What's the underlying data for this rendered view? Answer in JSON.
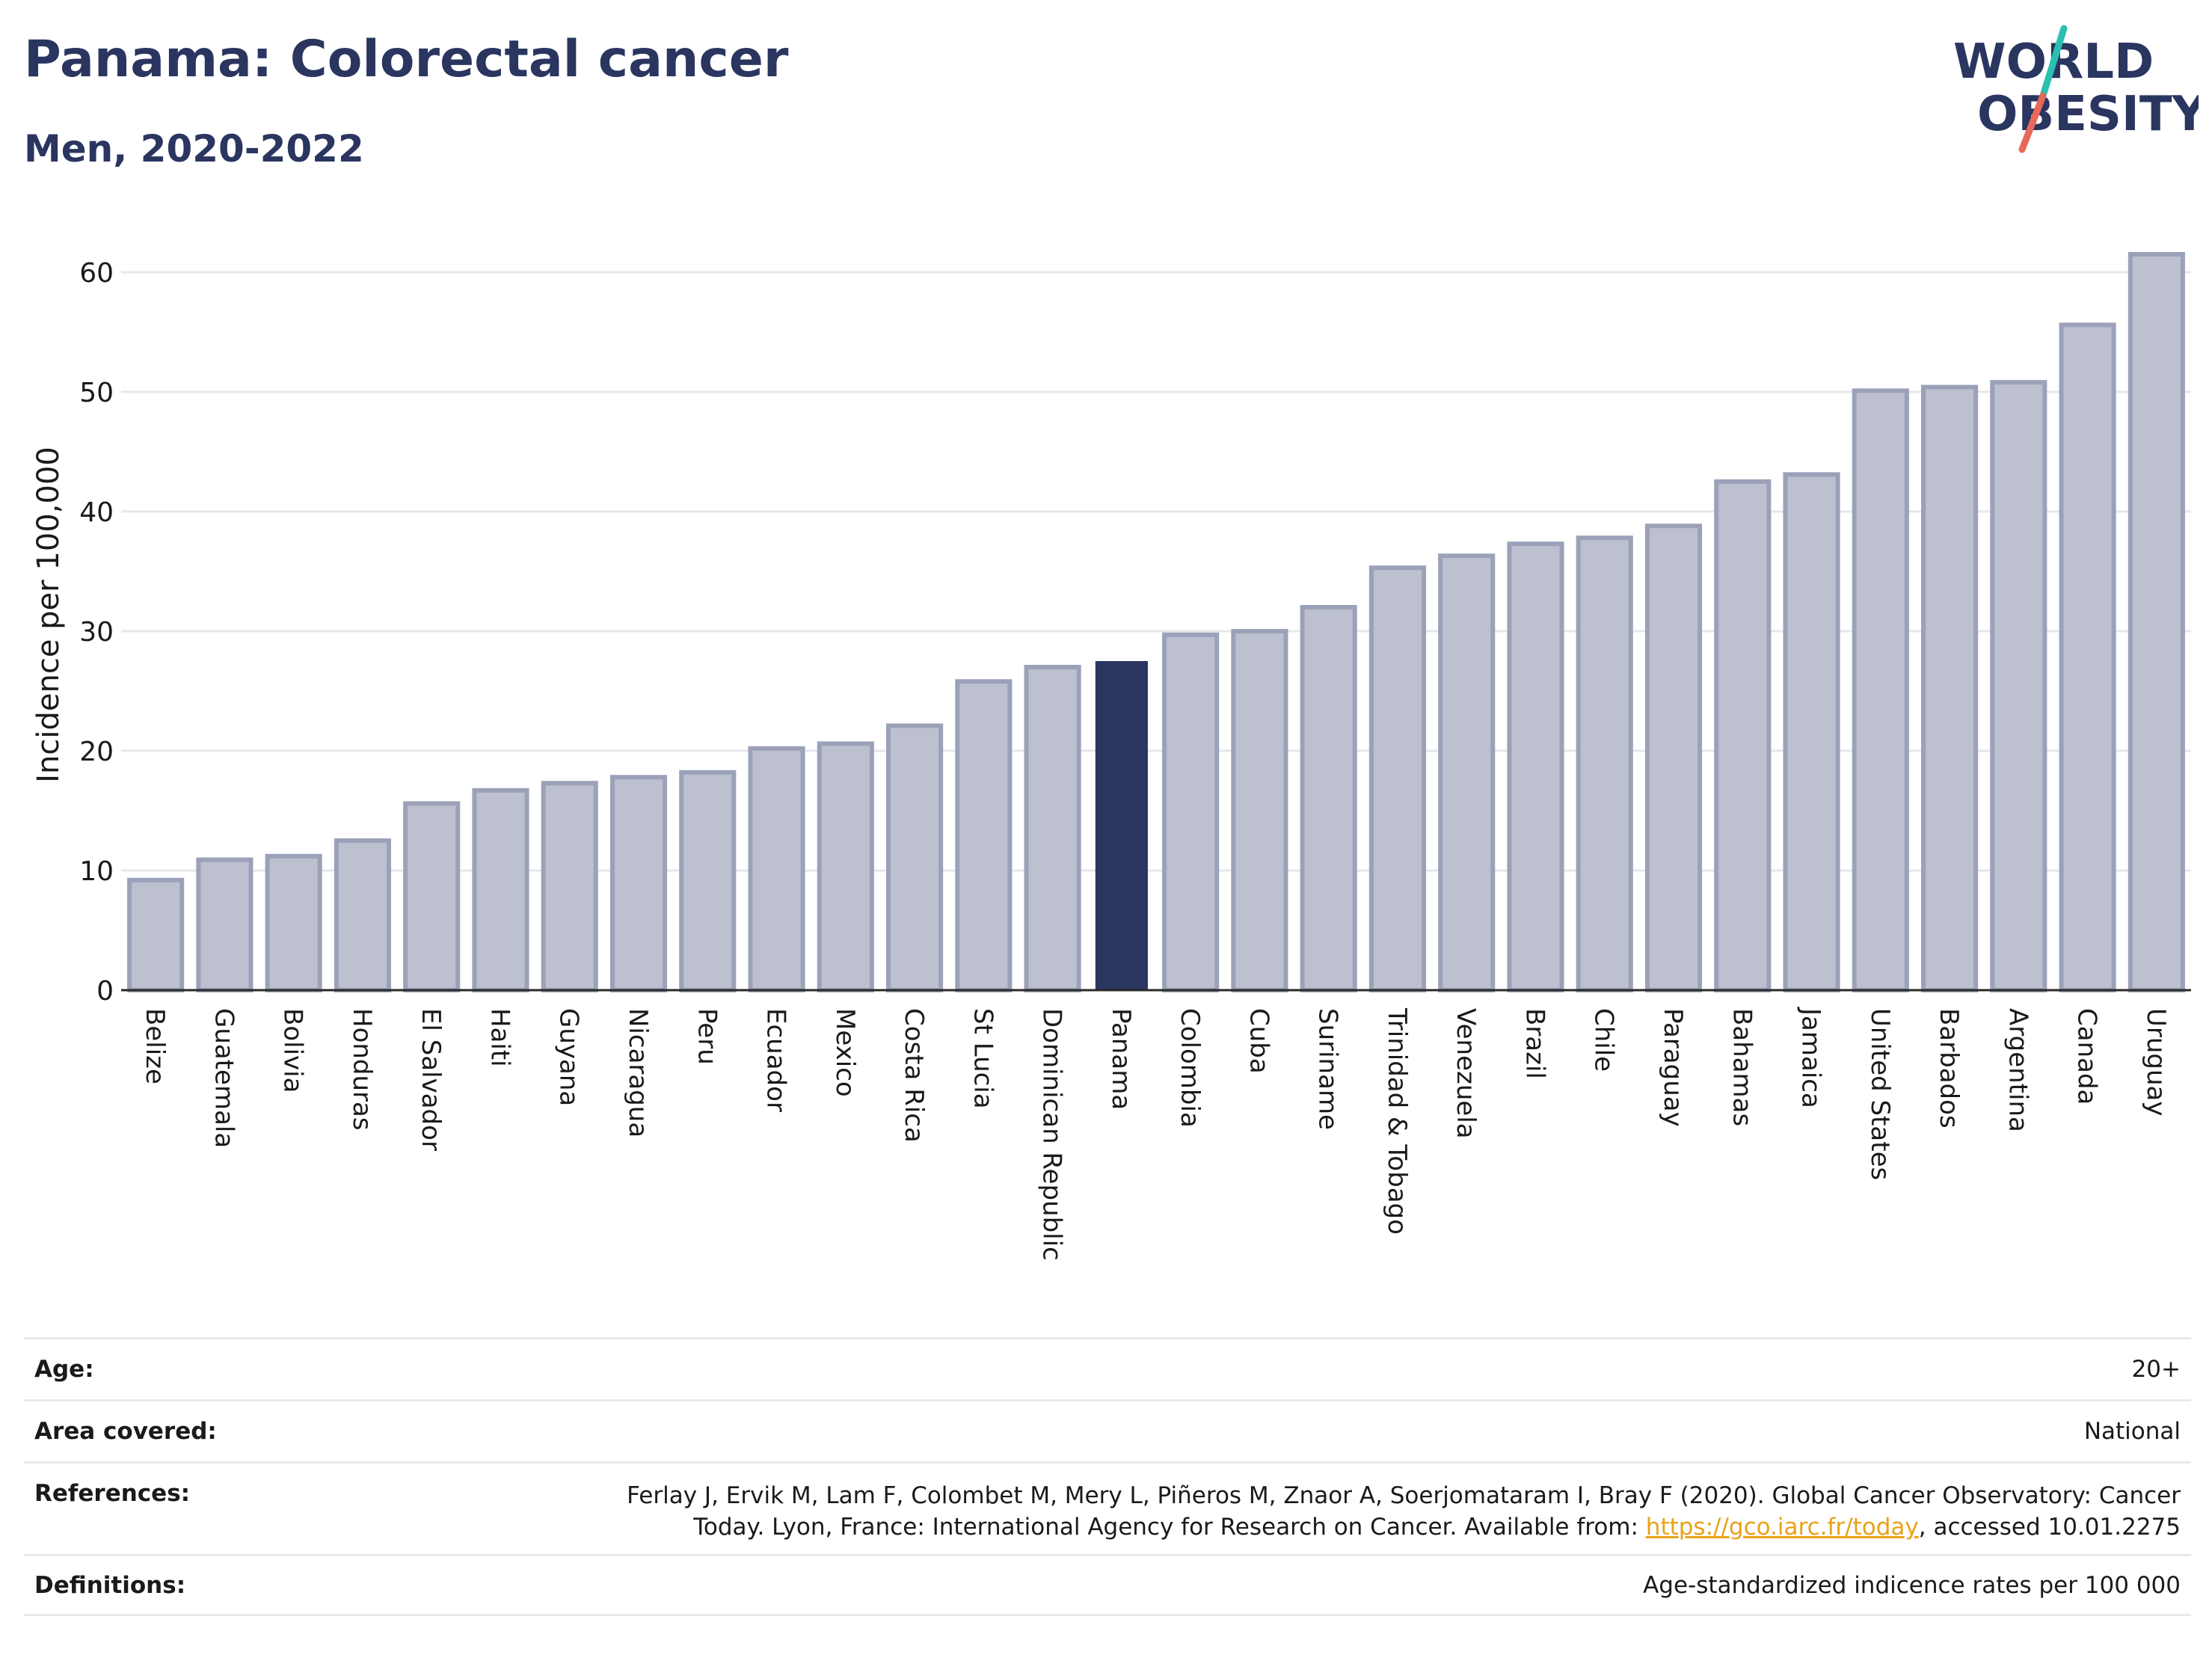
{
  "header": {
    "title": "Panama: Colorectal cancer",
    "subtitle": "Men, 2020-2022"
  },
  "logo": {
    "line1": "WORLD",
    "line2": "OBESITY",
    "colors": {
      "text": "#2a3560",
      "teal": "#2bbfb0",
      "coral": "#e8685a"
    }
  },
  "chart_data": {
    "type": "bar",
    "ylabel": "Incidence per 100,000",
    "xlabel": "",
    "ylim": [
      0,
      64
    ],
    "yticks": [
      0,
      10,
      20,
      30,
      40,
      50,
      60
    ],
    "grid": true,
    "highlight": "Panama",
    "colors": {
      "bar": "#bcc0cf",
      "bar_border": "#9ba1b8",
      "highlight": "#2a3560",
      "grid": "#e6e7ec"
    },
    "categories": [
      "Belize",
      "Guatemala",
      "Bolivia",
      "Honduras",
      "El Salvador",
      "Haiti",
      "Guyana",
      "Nicaragua",
      "Peru",
      "Ecuador",
      "Mexico",
      "Costa Rica",
      "St Lucia",
      "Dominican Republic",
      "Panama",
      "Colombia",
      "Cuba",
      "Suriname",
      "Trinidad & Tobago",
      "Venezuela",
      "Brazil",
      "Chile",
      "Paraguay",
      "Bahamas",
      "Jamaica",
      "United States",
      "Barbados",
      "Argentina",
      "Canada",
      "Uruguay"
    ],
    "values": [
      9.2,
      10.9,
      11.2,
      12.5,
      15.6,
      16.7,
      17.3,
      17.8,
      18.2,
      20.2,
      20.6,
      22.1,
      25.8,
      27.0,
      27.5,
      29.7,
      30.0,
      32.0,
      35.3,
      36.3,
      37.3,
      37.8,
      38.8,
      42.5,
      43.1,
      50.1,
      50.4,
      50.8,
      55.6,
      61.5
    ]
  },
  "info": {
    "age_label": "Age:",
    "age_value": "20+",
    "area_label": "Area covered:",
    "area_value": "National",
    "references_label": "References:",
    "references_line1": "Ferlay J, Ervik M, Lam F, Colombet M, Mery L, Piñeros M, Znaor A, Soerjomataram I, Bray F (2020). Global Cancer Observatory: Cancer",
    "references_line2_pre": "Today. Lyon, France: International Agency for Research on Cancer. Available from: ",
    "references_link": "https://gco.iarc.fr/today",
    "references_line2_post": ", accessed 10.01.2275",
    "definitions_label": "Definitions:",
    "definitions_value": "Age-standardized indicence rates per 100 000"
  }
}
